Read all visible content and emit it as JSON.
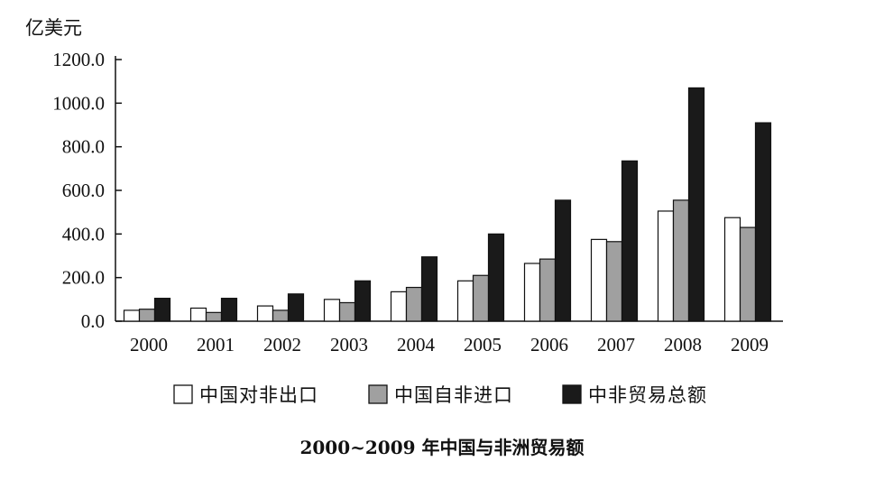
{
  "chart_data": {
    "type": "bar",
    "title": "2000~2009 年中国与非洲贸易额",
    "ylabel": "亿美元",
    "xlabel": "",
    "ylim": [
      0,
      1200
    ],
    "yticks": [
      "0.0",
      "200.0",
      "400.0",
      "600.0",
      "800.0",
      "1000.0",
      "1200.0"
    ],
    "categories": [
      "2000",
      "2001",
      "2002",
      "2003",
      "2004",
      "2005",
      "2006",
      "2007",
      "2008",
      "2009"
    ],
    "series": [
      {
        "name": "中国对非出口",
        "color": "#ffffff",
        "values": [
          50,
          60,
          70,
          100,
          135,
          185,
          265,
          375,
          505,
          475
        ]
      },
      {
        "name": "中国自非进口",
        "color": "#a0a0a0",
        "values": [
          55,
          40,
          50,
          85,
          155,
          210,
          285,
          365,
          555,
          430
        ]
      },
      {
        "name": "中非贸易总额",
        "color": "#1a1a1a",
        "values": [
          105,
          105,
          125,
          185,
          295,
          400,
          555,
          735,
          1070,
          910
        ]
      }
    ],
    "legend": "bottom",
    "grid": false
  }
}
